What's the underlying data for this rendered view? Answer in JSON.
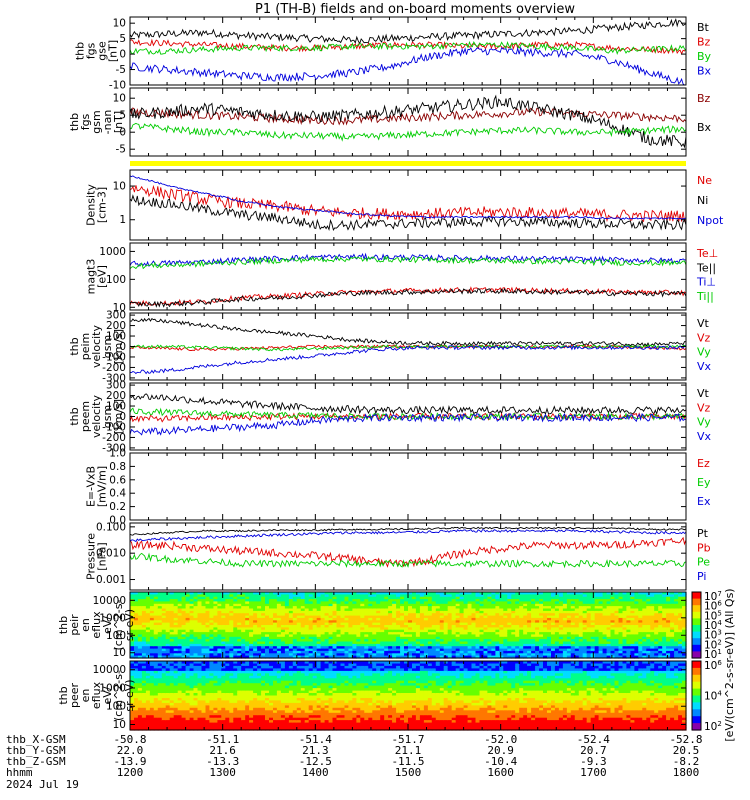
{
  "title": "P1 (TH-B) fields and on-board moments overview",
  "colors": {
    "black": "#000000",
    "red": "#e00000",
    "green": "#00cc00",
    "blue": "#0000dd",
    "darkred": "#8b0000",
    "yellow": "#ffff00"
  },
  "chart_data": [
    {
      "id": "fgs_gse",
      "type": "line",
      "ylabel_lines": [
        "thb",
        "fgs",
        "gse",
        "[nT]"
      ],
      "ylim": [
        -10,
        12
      ],
      "yticks": [
        "10",
        "5",
        "0",
        "-5",
        "-10"
      ],
      "ytick_values": [
        10,
        5,
        0,
        -5,
        -10
      ],
      "x_range": [
        1200,
        1800
      ],
      "series": [
        {
          "name": "Bt",
          "color": "black",
          "level": [
            6,
            6.5,
            7,
            6,
            5.5,
            5,
            4.5,
            5,
            5.5,
            6,
            6.5,
            7,
            7.5,
            8.5,
            9.5,
            10.5
          ],
          "noise": 1.2
        },
        {
          "name": "Bz",
          "color": "red",
          "level": [
            4,
            3.5,
            3,
            2.5,
            2,
            2,
            2.5,
            3,
            3,
            2.5,
            2.5,
            3,
            3,
            2,
            1.5,
            1
          ],
          "noise": 1.0
        },
        {
          "name": "By",
          "color": "green",
          "level": [
            1,
            1,
            1.5,
            2,
            2,
            2,
            2.5,
            2.5,
            2.5,
            3,
            3,
            2.5,
            2,
            1,
            1.5,
            2
          ],
          "noise": 1.0
        },
        {
          "name": "Bx",
          "color": "blue",
          "level": [
            -4,
            -5,
            -6,
            -7,
            -7.5,
            -7,
            -6,
            -4,
            -1,
            1,
            1,
            0.5,
            0,
            -2,
            -6,
            -9.5
          ],
          "noise": 1.3
        }
      ]
    },
    {
      "id": "fgs_gsm",
      "type": "line",
      "ylabel_lines": [
        "thb",
        "fgs",
        "gsm",
        "-nan",
        "[nT]"
      ],
      "ylim": [
        -7,
        13
      ],
      "yticks": [
        "10",
        "5",
        "0",
        "-5"
      ],
      "ytick_values": [
        10,
        5,
        0,
        -5
      ],
      "x_range": [
        1200,
        1800
      ],
      "series": [
        {
          "name": "Bz",
          "color": "darkred",
          "level": [
            6,
            5.5,
            5,
            4.5,
            4,
            3.5,
            3.5,
            4,
            4.5,
            5,
            5.5,
            6,
            5.5,
            5,
            4.5,
            4
          ],
          "noise": 1.2
        },
        {
          "name": "Bx",
          "color": "black",
          "level": [
            5,
            6,
            7,
            6,
            5,
            4.5,
            5,
            6,
            7,
            8,
            9,
            7,
            5,
            2,
            -2,
            -3
          ],
          "noise": 1.8
        },
        {
          "name": "",
          "color": "green",
          "level": [
            2,
            1,
            0,
            0,
            -1,
            -1,
            -1.5,
            -1,
            -0.5,
            0,
            0.5,
            0.5,
            0,
            0,
            0.5,
            1
          ],
          "noise": 1.0
        }
      ]
    },
    {
      "id": "density",
      "type": "line",
      "log": true,
      "ylabel_lines": [
        "Density",
        "[cm-3]"
      ],
      "ylim": [
        0.25,
        30
      ],
      "yticks": [
        "10",
        "1"
      ],
      "ytick_values": [
        10,
        1
      ],
      "x_range": [
        1200,
        1800
      ],
      "series": [
        {
          "name": "Ne",
          "color": "red",
          "level": [
            9,
            6,
            4,
            3,
            2.5,
            1.8,
            1.6,
            1.5,
            1.5,
            1.6,
            1.7,
            1.6,
            1.5,
            1.4,
            1.3,
            1.3
          ],
          "noise": 0.35
        },
        {
          "name": "Ni",
          "color": "black",
          "level": [
            4,
            3,
            2,
            1.4,
            1.1,
            0.7,
            0.7,
            0.75,
            0.8,
            0.85,
            0.9,
            0.85,
            0.8,
            0.75,
            0.7,
            0.7
          ],
          "noise": 0.3
        },
        {
          "name": "Npot",
          "color": "blue",
          "level": [
            20,
            10,
            6,
            3.5,
            2.4,
            1.9,
            1.5,
            1.3,
            1.2,
            1.2,
            1.2,
            1.2,
            1.2,
            1.1,
            1.1,
            1.1
          ],
          "noise": 0.05
        }
      ]
    },
    {
      "id": "temperature",
      "type": "line",
      "log": true,
      "ylabel_lines": [
        "magt3",
        "[eV]"
      ],
      "ylim": [
        8,
        2000
      ],
      "yticks": [
        "1000",
        "100",
        "10"
      ],
      "ytick_values": [
        1000,
        100,
        10
      ],
      "x_range": [
        1200,
        1800
      ],
      "series": [
        {
          "name": "Te⊥",
          "color": "red",
          "level": [
            14,
            14,
            16,
            22,
            25,
            30,
            35,
            38,
            40,
            42,
            42,
            40,
            38,
            36,
            34,
            33
          ],
          "noise": 0.18
        },
        {
          "name": "Te||",
          "color": "black",
          "level": [
            13,
            13,
            15,
            20,
            22,
            27,
            32,
            34,
            36,
            38,
            38,
            36,
            34,
            32,
            31,
            30
          ],
          "noise": 0.18
        },
        {
          "name": "Ti⊥",
          "color": "blue",
          "level": [
            350,
            380,
            420,
            500,
            560,
            620,
            640,
            620,
            600,
            580,
            560,
            540,
            520,
            500,
            480,
            460
          ],
          "noise": 0.2
        },
        {
          "name": "Ti||",
          "color": "green",
          "level": [
            300,
            320,
            360,
            420,
            470,
            520,
            540,
            520,
            500,
            480,
            460,
            440,
            420,
            400,
            390,
            380
          ],
          "noise": 0.2
        }
      ]
    },
    {
      "id": "peim_velocity",
      "type": "line",
      "ylabel_lines": [
        "thb",
        "peim",
        "velocity",
        "gsm",
        "[km/s]"
      ],
      "ylim": [
        -320,
        320
      ],
      "yticks": [
        "300",
        "200",
        "100",
        "0",
        "-100",
        "-200",
        "-300"
      ],
      "ytick_values": [
        300,
        200,
        100,
        0,
        -100,
        -200,
        -300
      ],
      "x_range": [
        1200,
        1800
      ],
      "series": [
        {
          "name": "Vt",
          "color": "black",
          "level": [
            260,
            240,
            200,
            160,
            130,
            100,
            60,
            40,
            30,
            30,
            30,
            30,
            30,
            30,
            20,
            30
          ],
          "noise": 18
        },
        {
          "name": "Vz",
          "color": "red",
          "level": [
            -10,
            -20,
            -30,
            -20,
            -10,
            0,
            0,
            0,
            0,
            0,
            0,
            0,
            0,
            0,
            -10,
            -20
          ],
          "noise": 14
        },
        {
          "name": "Vy",
          "color": "green",
          "level": [
            0,
            0,
            -10,
            -20,
            -30,
            -20,
            -10,
            0,
            0,
            0,
            0,
            0,
            0,
            0,
            0,
            0
          ],
          "noise": 14
        },
        {
          "name": "Vx",
          "color": "blue",
          "level": [
            -250,
            -230,
            -190,
            -150,
            -120,
            -90,
            -50,
            -20,
            -10,
            -10,
            -10,
            -10,
            -10,
            -10,
            -10,
            -10
          ],
          "noise": 18
        }
      ]
    },
    {
      "id": "peem_velocity",
      "type": "line",
      "ylabel_lines": [
        "thb",
        "peem",
        "velocity",
        "gsm",
        "[km/s]"
      ],
      "ylim": [
        -320,
        320
      ],
      "yticks": [
        "300",
        "200",
        "100",
        "0",
        "-100",
        "-200",
        "-300"
      ],
      "ytick_values": [
        300,
        200,
        100,
        0,
        -100,
        -200,
        -300
      ],
      "x_range": [
        1200,
        1800
      ],
      "series": [
        {
          "name": "Vt",
          "color": "black",
          "level": [
            200,
            180,
            150,
            120,
            100,
            80,
            70,
            60,
            60,
            60,
            60,
            60,
            60,
            60,
            60,
            60
          ],
          "noise": 35
        },
        {
          "name": "Vz",
          "color": "red",
          "level": [
            -20,
            -20,
            -10,
            -10,
            0,
            0,
            0,
            0,
            0,
            0,
            0,
            0,
            0,
            0,
            0,
            0
          ],
          "noise": 30
        },
        {
          "name": "Vy",
          "color": "green",
          "level": [
            50,
            40,
            30,
            20,
            10,
            10,
            0,
            0,
            0,
            0,
            0,
            0,
            0,
            0,
            0,
            0
          ],
          "noise": 30
        },
        {
          "name": "Vx",
          "color": "blue",
          "level": [
            -150,
            -140,
            -120,
            -100,
            -80,
            -40,
            -20,
            -10,
            -10,
            -10,
            -10,
            -10,
            -10,
            -10,
            -10,
            -10
          ],
          "noise": 35
        }
      ]
    },
    {
      "id": "efield",
      "type": "line",
      "ylabel_lines": [
        "E=-VxB",
        "[mV/m]"
      ],
      "ylim": [
        0,
        1.0
      ],
      "yticks": [
        "1.0",
        "0.8",
        "0.6",
        "0.4",
        "0.2",
        "0.0"
      ],
      "ytick_values": [
        1.0,
        0.8,
        0.6,
        0.4,
        0.2,
        0.0
      ],
      "x_range": [
        1200,
        1800
      ],
      "series": [
        {
          "name": "Ez",
          "color": "red",
          "level": [],
          "noise": 0
        },
        {
          "name": "Ey",
          "color": "green",
          "level": [],
          "noise": 0
        },
        {
          "name": "Ex",
          "color": "blue",
          "level": [],
          "noise": 0
        }
      ]
    },
    {
      "id": "pressure",
      "type": "line",
      "log": true,
      "ylabel_lines": [
        "Pressure",
        "[nPa]"
      ],
      "ylim": [
        0.0004,
        0.14
      ],
      "yticks": [
        "0.100",
        "0.010",
        "0.001"
      ],
      "ytick_values": [
        0.1,
        0.01,
        0.001
      ],
      "x_range": [
        1200,
        1800
      ],
      "series": [
        {
          "name": "Pt",
          "color": "black",
          "level": [
            0.05,
            0.06,
            0.07,
            0.07,
            0.075,
            0.075,
            0.08,
            0.08,
            0.085,
            0.09,
            0.09,
            0.09,
            0.09,
            0.09,
            0.08,
            0.08
          ],
          "noise": 0.06
        },
        {
          "name": "Pb",
          "color": "red",
          "level": [
            0.02,
            0.02,
            0.015,
            0.012,
            0.01,
            0.008,
            0.006,
            0.004,
            0.005,
            0.01,
            0.015,
            0.02,
            0.02,
            0.02,
            0.025,
            0.03
          ],
          "noise": 0.3
        },
        {
          "name": "Pe",
          "color": "green",
          "level": [
            0.008,
            0.006,
            0.005,
            0.004,
            0.004,
            0.004,
            0.004,
            0.004,
            0.004,
            0.004,
            0.004,
            0.004,
            0.004,
            0.004,
            0.004,
            0.004
          ],
          "noise": 0.25
        },
        {
          "name": "Pi",
          "color": "blue",
          "level": [
            0.03,
            0.035,
            0.04,
            0.045,
            0.05,
            0.055,
            0.06,
            0.06,
            0.065,
            0.07,
            0.07,
            0.07,
            0.07,
            0.065,
            0.06,
            0.06
          ],
          "noise": 0.1
        }
      ]
    },
    {
      "id": "peir_eflux",
      "type": "heatmap",
      "ylabel_lines": [
        "thb",
        "peir",
        "en",
        "eflux",
        "eV/",
        "(cm^2-s-",
        "sr-eV)"
      ],
      "ylim": [
        5,
        30000
      ],
      "yticks": [
        "10000",
        "1000",
        "100",
        "10"
      ],
      "ytick_values": [
        10000,
        1000,
        100,
        10
      ],
      "x_range": [
        1200,
        1800
      ]
    },
    {
      "id": "peer_eflux",
      "type": "heatmap",
      "ylabel_lines": [
        "thb",
        "peer",
        "en",
        "eflux",
        "eV/",
        "(cm^2-s-",
        "sr-eV)"
      ],
      "ylim": [
        5,
        30000
      ],
      "yticks": [
        "10000",
        "1000",
        "100",
        "10"
      ],
      "ytick_values": [
        10000,
        1000,
        100,
        10
      ],
      "x_range": [
        1200,
        1800
      ]
    }
  ],
  "colorbar": {
    "label": "[eV/(cm^2-s-sr-eV)] (All Qs)",
    "upper_ticks": [
      "10^7",
      "10^6",
      "10^5",
      "10^4",
      "10^3",
      "10^2",
      "10^1"
    ],
    "lower_ticks": [
      "10^6",
      "10^4",
      "10^2"
    ]
  },
  "x_axis": {
    "row_labels": [
      "thb_X-GSM",
      "thb_Y-GSM",
      "thb_Z-GSM",
      "hhmm",
      "2024 Jul 19"
    ],
    "ticks": [
      {
        "x": 1200,
        "X": "-50.8",
        "Y": "22.0",
        "Z": "-13.9",
        "hhmm": "1200"
      },
      {
        "x": 1300,
        "X": "-51.1",
        "Y": "21.6",
        "Z": "-13.3",
        "hhmm": "1300"
      },
      {
        "x": 1400,
        "X": "-51.4",
        "Y": "21.3",
        "Z": "-12.5",
        "hhmm": "1400"
      },
      {
        "x": 1500,
        "X": "-51.7",
        "Y": "21.1",
        "Z": "-11.5",
        "hhmm": "1500"
      },
      {
        "x": 1600,
        "X": "-52.0",
        "Y": "20.9",
        "Z": "-10.4",
        "hhmm": "1600"
      },
      {
        "x": 1700,
        "X": "-52.4",
        "Y": "20.7",
        "Z": "-9.3",
        "hhmm": "1700"
      },
      {
        "x": 1800,
        "X": "-52.8",
        "Y": "20.5",
        "Z": "-8.2",
        "hhmm": "1800"
      }
    ]
  }
}
